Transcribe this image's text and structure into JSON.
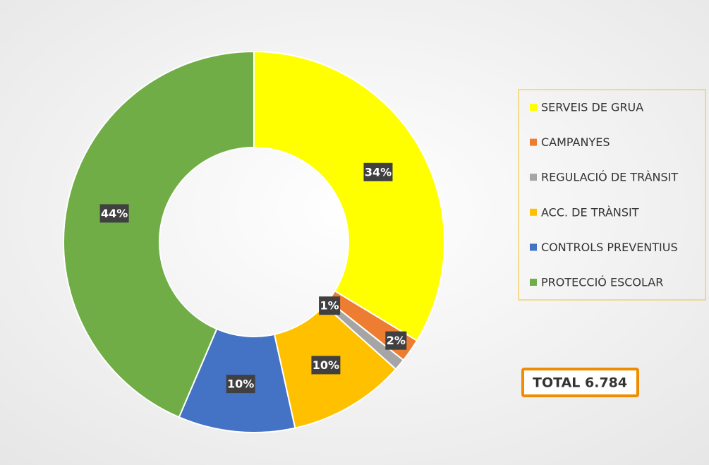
{
  "chart_data": {
    "type": "donut",
    "categories": [
      "SERVEIS DE GRUA",
      "CAMPANYES",
      "REGULACIÓ DE TRÀNSIT",
      "ACC. DE TRÀNSIT",
      "CONTROLS PREVENTIUS",
      "PROTECCIÓ ESCOLAR"
    ],
    "values": [
      34,
      2,
      1,
      10,
      10,
      44
    ],
    "value_labels": [
      "34%",
      "2%",
      "1%",
      "10%",
      "10%",
      "44%"
    ],
    "colors": [
      "#ffff00",
      "#ed7d31",
      "#a5a5a5",
      "#ffc000",
      "#4472c4",
      "#70ad47"
    ],
    "legend": "right",
    "total": "TOTAL 6.784"
  }
}
